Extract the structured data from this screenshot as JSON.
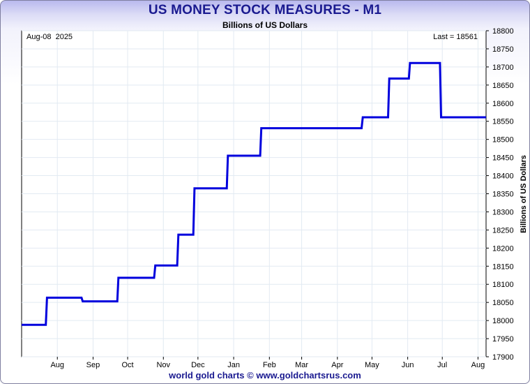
{
  "chart_data": {
    "type": "line",
    "title": "US MONEY STOCK MEASURES - M1",
    "subtitle": "Billions of US Dollars",
    "ylabel": "Billions of US Dollars",
    "date_label": "Aug-08  2025",
    "last_label": "Last = 18561",
    "ylim": [
      17900,
      18800
    ],
    "yticks": [
      17900,
      17950,
      18000,
      18050,
      18100,
      18150,
      18200,
      18250,
      18300,
      18350,
      18400,
      18450,
      18500,
      18550,
      18600,
      18650,
      18700,
      18750,
      18800
    ],
    "xticks": [
      "Aug",
      "Sep",
      "Oct",
      "Nov",
      "Dec",
      "Jan",
      "Feb",
      "Mar",
      "Apr",
      "May",
      "Jun",
      "Jul",
      "Aug"
    ],
    "grid": true,
    "line_color": "#0000dd",
    "series": [
      {
        "x": [
          "2024-07-01",
          "2024-07-22",
          "2024-07-23",
          "2024-08-22",
          "2024-08-23",
          "2024-09-22",
          "2024-09-23",
          "2024-10-24",
          "2024-10-25",
          "2024-11-13",
          "2024-11-14",
          "2024-11-27",
          "2024-11-28",
          "2024-12-26",
          "2024-12-27",
          "2025-01-24",
          "2025-01-25",
          "2025-04-22",
          "2025-04-23",
          "2025-05-15",
          "2025-05-16",
          "2025-06-02",
          "2025-06-03",
          "2025-06-29",
          "2025-06-30",
          "2025-07-25",
          "2025-07-26",
          "2025-08-08"
        ],
        "y": [
          17988,
          17988,
          18063,
          18063,
          18053,
          18053,
          18118,
          18118,
          18152,
          18152,
          18237,
          18237,
          18365,
          18365,
          18455,
          18455,
          18531,
          18531,
          18561,
          18561,
          18668,
          18668,
          18711,
          18711,
          18561,
          18561,
          18561,
          18561
        ]
      }
    ]
  },
  "footer": "world gold charts © www.goldchartsrus.com"
}
